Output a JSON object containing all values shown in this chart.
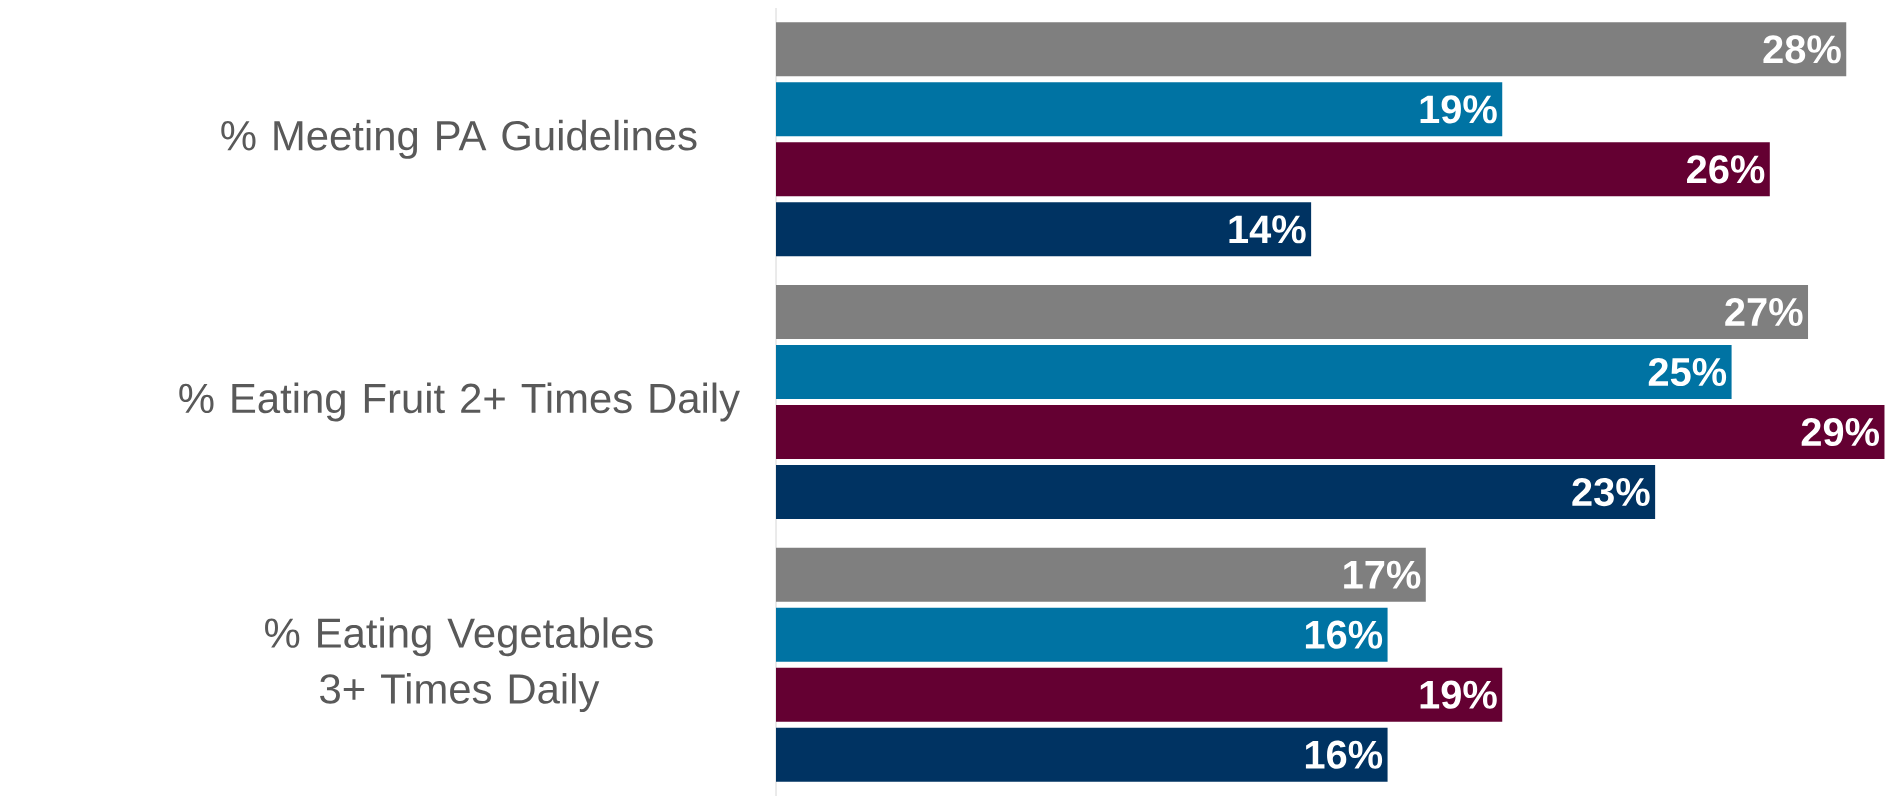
{
  "chart_data": {
    "type": "bar",
    "orientation": "horizontal",
    "categories": [
      "% Meeting PA Guidelines",
      "% Eating Fruit 2+ Times Daily",
      "% Eating Vegetables 3+ Times Daily"
    ],
    "series": [
      {
        "color": "#7f7f7f",
        "values": [
          28,
          27,
          17
        ],
        "value_labels": [
          "28%",
          "27%",
          "17%"
        ]
      },
      {
        "color": "#0073a3",
        "values": [
          19,
          25,
          16
        ],
        "value_labels": [
          "19%",
          "25%",
          "16%"
        ]
      },
      {
        "color": "#640032",
        "values": [
          26,
          29,
          19
        ],
        "value_labels": [
          "26%",
          "29%",
          "19%"
        ]
      },
      {
        "color": "#003362",
        "values": [
          14,
          23,
          16
        ],
        "value_labels": [
          "14%",
          "23%",
          "16%"
        ]
      }
    ]
  }
}
